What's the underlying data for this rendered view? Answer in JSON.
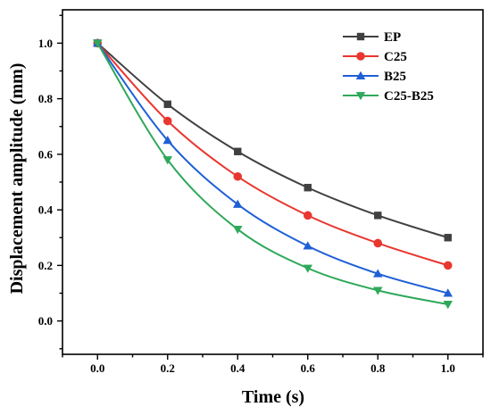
{
  "chart_data": {
    "type": "line",
    "title": "",
    "xlabel": "Time (s)",
    "ylabel": "Displacement amplitude (mm)",
    "x": [
      0.0,
      0.2,
      0.4,
      0.6,
      0.8,
      1.0
    ],
    "xlim": [
      -0.1,
      1.1
    ],
    "ylim": [
      -0.12,
      1.12
    ],
    "x_ticks": [
      "0.0",
      "0.2",
      "0.4",
      "0.6",
      "0.8",
      "1.0"
    ],
    "y_ticks": [
      "0.0",
      "0.2",
      "0.4",
      "0.6",
      "0.8",
      "1.0"
    ],
    "grid": false,
    "legend_position": "top-right",
    "series": [
      {
        "name": "EP",
        "color": "#404040",
        "marker": "square",
        "values": [
          1.0,
          0.78,
          0.61,
          0.48,
          0.38,
          0.3
        ]
      },
      {
        "name": "C25",
        "color": "#e8372f",
        "marker": "circle",
        "values": [
          1.0,
          0.72,
          0.52,
          0.38,
          0.28,
          0.2
        ]
      },
      {
        "name": "B25",
        "color": "#1f5fd6",
        "marker": "triangle-up",
        "values": [
          1.0,
          0.65,
          0.42,
          0.27,
          0.17,
          0.1
        ]
      },
      {
        "name": "C25-B25",
        "color": "#2fa85a",
        "marker": "triangle-down",
        "values": [
          1.0,
          0.58,
          0.33,
          0.19,
          0.11,
          0.06
        ]
      }
    ]
  }
}
